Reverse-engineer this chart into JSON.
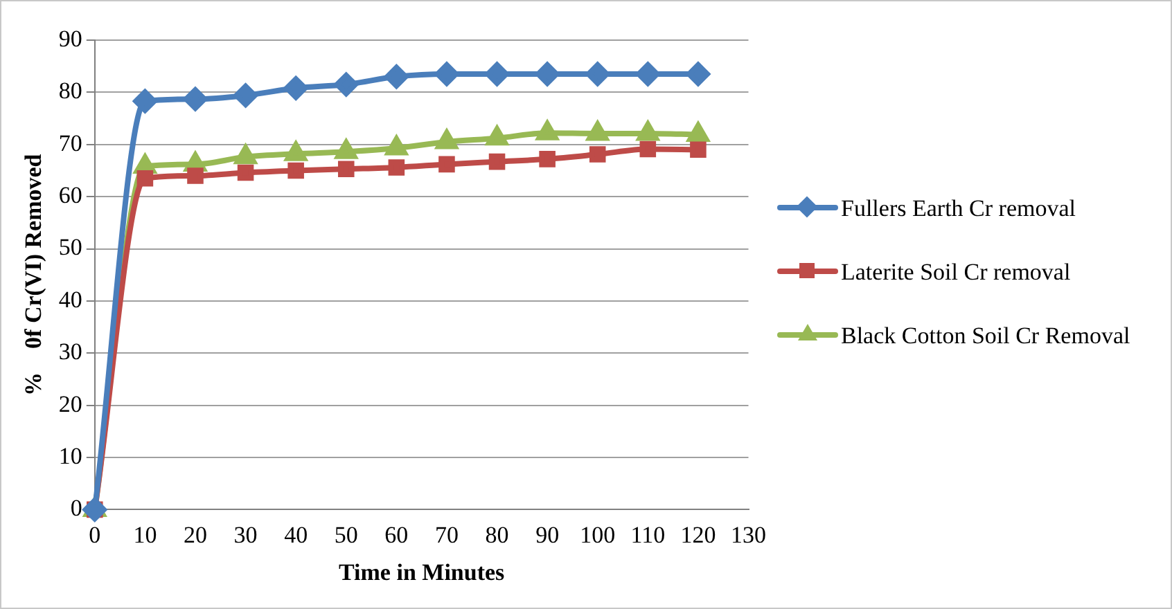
{
  "chart_data": {
    "type": "line",
    "xlabel": "Time in Minutes",
    "ylabel": "%    0f Cr(VI) Removed",
    "x": [
      0,
      10,
      20,
      30,
      40,
      50,
      60,
      70,
      80,
      90,
      100,
      110,
      120
    ],
    "series": [
      {
        "name": "Fullers Earth Cr removal",
        "color": "#4a7ebb",
        "marker": "diamond",
        "values": [
          0,
          78.3,
          78.7,
          79.4,
          80.8,
          81.5,
          83,
          83.5,
          83.5,
          83.5,
          83.5,
          83.5,
          83.5
        ]
      },
      {
        "name": "Laterite Soil Cr removal",
        "color": "#be4b48",
        "marker": "square",
        "values": [
          0,
          63.5,
          64,
          64.6,
          65,
          65.3,
          65.6,
          66.2,
          66.7,
          67.2,
          68.1,
          69.1,
          69
        ]
      },
      {
        "name": "Black Cotton Soil Cr Removal",
        "color": "#98b954",
        "marker": "triangle",
        "values": [
          0,
          65.8,
          66.2,
          67.6,
          68.2,
          68.6,
          69.3,
          70.5,
          71.2,
          72.2,
          72.1,
          72.1,
          71.9
        ]
      }
    ],
    "xlim": [
      0,
      130
    ],
    "xticks": [
      0,
      10,
      20,
      30,
      40,
      50,
      60,
      70,
      80,
      90,
      100,
      110,
      120,
      130
    ],
    "ylim": [
      0,
      90
    ],
    "yticks": [
      0,
      10,
      20,
      30,
      40,
      50,
      60,
      70,
      80,
      90
    ],
    "grid": "y",
    "legend": "right",
    "line_style": "solid"
  }
}
